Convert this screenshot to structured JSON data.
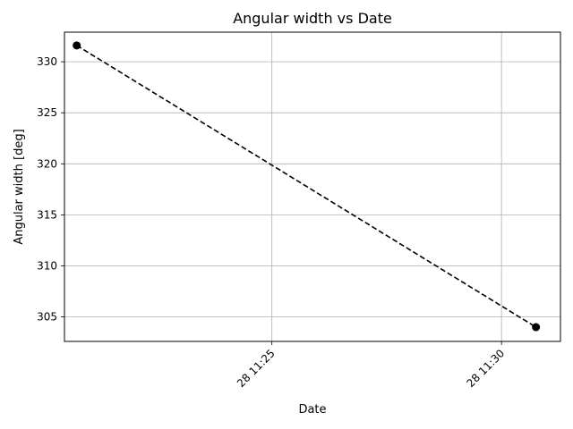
{
  "chart_data": {
    "type": "line",
    "title": "Angular width vs Date",
    "xlabel": "Date",
    "ylabel": "Angular width [deg]",
    "x_ticks": [
      "28 11:25",
      "28 11:30"
    ],
    "y_ticks": [
      305,
      310,
      315,
      320,
      325,
      330
    ],
    "xlim": [
      "28 11:20:29",
      "28 11:31:17"
    ],
    "ylim": [
      302.6,
      332.9
    ],
    "grid": true,
    "x_scale": "time (minutes)",
    "series": [
      {
        "x": [
          "28 11:20:45",
          "28 11:30:45"
        ],
        "y": [
          331.6,
          304.0
        ],
        "line_style": "dashed",
        "marker": "circle",
        "color": "#000000"
      }
    ]
  }
}
